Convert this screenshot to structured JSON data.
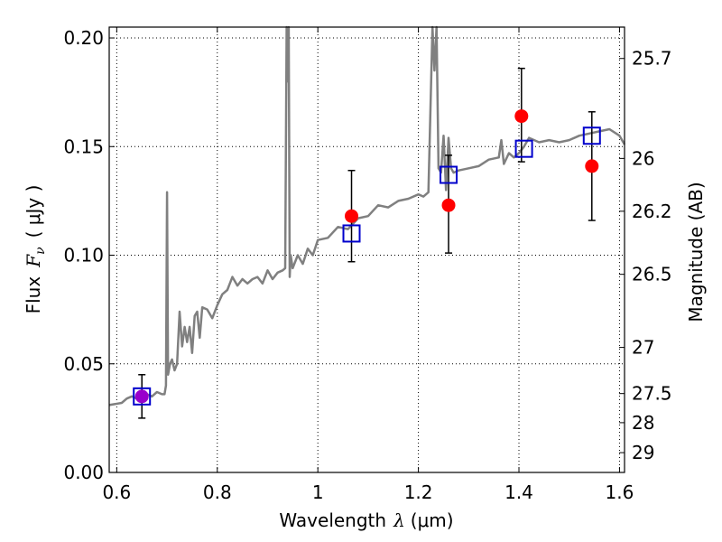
{
  "chart_data": {
    "type": "scatter",
    "xlabel": {
      "pre": "Wavelength",
      "sym": "λ",
      "unit": "(μm)"
    },
    "ylabel": {
      "pre": "Flux",
      "sym": "F",
      "sub": "ν",
      "unit": "( μJy )"
    },
    "ylabel_right": "Magnitude (AB)",
    "xlim": [
      0.585,
      1.61
    ],
    "ylim": [
      0.0,
      0.205
    ],
    "grid": true,
    "x_ticks": [
      {
        "v": 0.6,
        "label": "0.6"
      },
      {
        "v": 0.8,
        "label": "0.8"
      },
      {
        "v": 1.0,
        "label": "1"
      },
      {
        "v": 1.2,
        "label": "1.2"
      },
      {
        "v": 1.4,
        "label": "1.4"
      },
      {
        "v": 1.6,
        "label": "1.6"
      }
    ],
    "y_ticks": [
      {
        "v": 0.0,
        "label": "0.00"
      },
      {
        "v": 0.05,
        "label": "0.05"
      },
      {
        "v": 0.1,
        "label": "0.10"
      },
      {
        "v": 0.15,
        "label": "0.15"
      },
      {
        "v": 0.2,
        "label": "0.20"
      }
    ],
    "mag_ticks": [
      {
        "v": 25.7,
        "label": "25.7"
      },
      {
        "v": 26.0,
        "label": "26"
      },
      {
        "v": 26.2,
        "label": "26.2"
      },
      {
        "v": 26.5,
        "label": "26.5"
      },
      {
        "v": 27.0,
        "label": "27"
      },
      {
        "v": 27.5,
        "label": "27.5"
      },
      {
        "v": 28.0,
        "label": "28"
      },
      {
        "v": 29.0,
        "label": "29"
      }
    ],
    "series": [
      {
        "kind": "model_spectrum",
        "color": "#808080",
        "x": [
          0.585,
          0.61,
          0.62,
          0.63,
          0.64,
          0.65,
          0.66,
          0.67,
          0.68,
          0.69,
          0.695,
          0.698,
          0.7,
          0.702,
          0.706,
          0.71,
          0.715,
          0.72,
          0.725,
          0.73,
          0.735,
          0.74,
          0.745,
          0.75,
          0.755,
          0.76,
          0.765,
          0.77,
          0.78,
          0.79,
          0.8,
          0.81,
          0.82,
          0.83,
          0.84,
          0.85,
          0.86,
          0.87,
          0.88,
          0.89,
          0.9,
          0.91,
          0.92,
          0.93,
          0.935,
          0.938,
          0.94,
          0.942,
          0.944,
          0.946,
          0.95,
          0.96,
          0.97,
          0.98,
          0.99,
          1.0,
          1.02,
          1.04,
          1.06,
          1.08,
          1.1,
          1.12,
          1.14,
          1.16,
          1.18,
          1.2,
          1.21,
          1.22,
          1.228,
          1.232,
          1.236,
          1.24,
          1.245,
          1.25,
          1.255,
          1.26,
          1.265,
          1.27,
          1.28,
          1.3,
          1.32,
          1.34,
          1.36,
          1.365,
          1.37,
          1.38,
          1.39,
          1.4,
          1.41,
          1.42,
          1.44,
          1.46,
          1.48,
          1.5,
          1.52,
          1.54,
          1.56,
          1.58,
          1.6,
          1.61
        ],
        "y": [
          0.031,
          0.032,
          0.034,
          0.035,
          0.034,
          0.035,
          0.036,
          0.035,
          0.037,
          0.036,
          0.036,
          0.04,
          0.129,
          0.045,
          0.05,
          0.052,
          0.047,
          0.05,
          0.074,
          0.058,
          0.067,
          0.06,
          0.067,
          0.055,
          0.072,
          0.074,
          0.062,
          0.076,
          0.075,
          0.071,
          0.077,
          0.082,
          0.084,
          0.09,
          0.086,
          0.089,
          0.087,
          0.089,
          0.09,
          0.087,
          0.093,
          0.089,
          0.092,
          0.093,
          0.094,
          0.205,
          0.18,
          0.205,
          0.09,
          0.1,
          0.094,
          0.1,
          0.096,
          0.103,
          0.1,
          0.107,
          0.108,
          0.113,
          0.112,
          0.117,
          0.118,
          0.123,
          0.122,
          0.125,
          0.126,
          0.128,
          0.127,
          0.129,
          0.205,
          0.185,
          0.205,
          0.14,
          0.138,
          0.155,
          0.13,
          0.154,
          0.14,
          0.138,
          0.139,
          0.14,
          0.141,
          0.144,
          0.145,
          0.153,
          0.142,
          0.147,
          0.145,
          0.147,
          0.15,
          0.154,
          0.152,
          0.153,
          0.152,
          0.153,
          0.155,
          0.156,
          0.157,
          0.158,
          0.155,
          0.151
        ]
      },
      {
        "kind": "model_bandpass",
        "marker": "open-square",
        "color": "#0000cc",
        "x": [
          0.65,
          1.067,
          1.26,
          1.41,
          1.545
        ],
        "y": [
          0.035,
          0.11,
          0.137,
          0.149,
          0.155
        ]
      },
      {
        "kind": "observed",
        "marker": "filled-circle",
        "color": "#ff0000",
        "x": [
          1.067,
          1.26,
          1.405,
          1.545
        ],
        "y": [
          0.118,
          0.123,
          0.164,
          0.141
        ],
        "yerr_low": [
          0.097,
          0.101,
          0.143,
          0.116
        ],
        "yerr_high": [
          0.139,
          0.146,
          0.186,
          0.166
        ]
      },
      {
        "kind": "observed",
        "marker": "filled-circle",
        "color": "#9900cc",
        "x": [
          0.65
        ],
        "y": [
          0.035
        ],
        "yerr_low": [
          0.025
        ],
        "yerr_high": [
          0.045
        ]
      }
    ]
  }
}
